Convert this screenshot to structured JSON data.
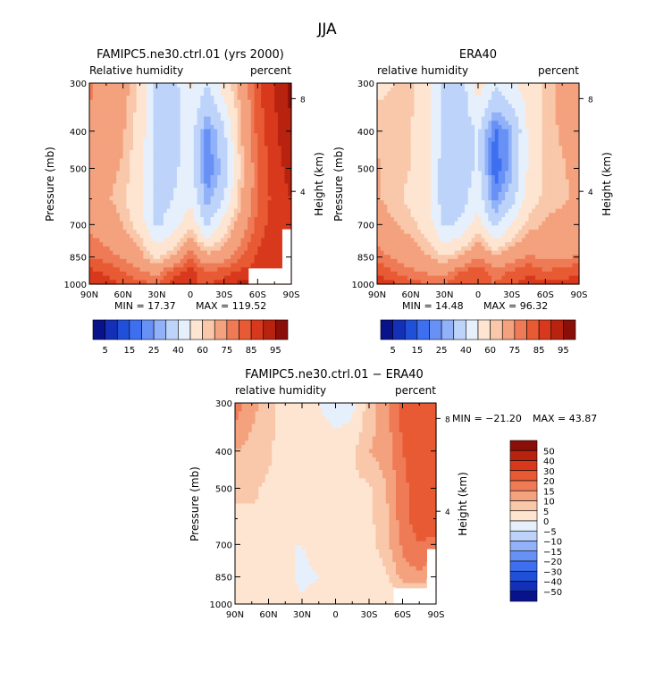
{
  "figure": {
    "title": "JJA"
  },
  "colorbars": {
    "main": {
      "colors": [
        "#08128a",
        "#1430b8",
        "#2050d8",
        "#3d6ff0",
        "#6891f5",
        "#91b2f8",
        "#bdd3fa",
        "#e6f0fd",
        "#fde5d2",
        "#f9c7a9",
        "#f4a17e",
        "#ef7a56",
        "#e85a33",
        "#d8391c",
        "#b8230f",
        "#8a0f08"
      ],
      "labels": [
        "5",
        "15",
        "25",
        "40",
        "60",
        "75",
        "85",
        "95"
      ]
    },
    "diff": {
      "colors": [
        "#08128a",
        "#1430b8",
        "#2050d8",
        "#3d6ff0",
        "#6891f5",
        "#91b2f8",
        "#bdd3fa",
        "#e6f0fd",
        "#fde5d2",
        "#f9c7a9",
        "#f4a17e",
        "#ef7a56",
        "#e85a33",
        "#d8391c",
        "#b8230f",
        "#8a0f08"
      ],
      "labels": [
        "50",
        "40",
        "30",
        "20",
        "15",
        "10",
        "5",
        "0",
        "−5",
        "−10",
        "−15",
        "−20",
        "−30",
        "−40",
        "−50"
      ]
    }
  },
  "chart_data": [
    {
      "type": "heatmap",
      "title": "FAMIPC5.ne30.ctrl.01 (yrs 2000)",
      "left_subtitle": "Relative humidity",
      "right_subtitle": "percent",
      "ylabel": "Pressure (mb)",
      "y2label": "Height (km)",
      "x_ticks": [
        "90N",
        "60N",
        "30N",
        "0",
        "30S",
        "60S",
        "90S"
      ],
      "y_ticks": [
        "300",
        "400",
        "500",
        "700",
        "850",
        "1000"
      ],
      "y2_ticks": [
        "8",
        "4"
      ],
      "min_text": "MIN =   17.37",
      "max_text": "MAX = 119.52",
      "lat": [
        90,
        75,
        60,
        45,
        30,
        15,
        0,
        -15,
        -30,
        -45,
        -60,
        -75,
        -90
      ],
      "lev": [
        300,
        400,
        500,
        600,
        700,
        850,
        925,
        1000
      ],
      "levels": [
        5,
        10,
        15,
        20,
        25,
        30,
        40,
        50,
        60,
        65,
        75,
        80,
        85,
        90,
        95
      ],
      "z": [
        [
          76,
          72,
          69,
          58,
          38,
          35,
          52,
          40,
          55,
          68,
          84,
          90,
          97
        ],
        [
          74,
          70,
          66,
          56,
          37,
          36,
          45,
          22,
          38,
          64,
          82,
          89,
          94
        ],
        [
          72,
          68,
          64,
          54,
          36,
          38,
          45,
          20,
          32,
          62,
          80,
          88,
          92
        ],
        [
          70,
          66,
          62,
          52,
          36,
          40,
          48,
          26,
          40,
          64,
          80,
          87,
          90
        ],
        [
          74,
          70,
          65,
          56,
          38,
          45,
          58,
          38,
          55,
          70,
          82,
          88,
          88
        ],
        [
          80,
          78,
          74,
          68,
          58,
          66,
          80,
          68,
          72,
          80,
          86,
          88,
          86
        ],
        [
          86,
          84,
          80,
          76,
          72,
          82,
          88,
          80,
          82,
          86,
          86,
          88,
          86
        ],
        [
          90,
          88,
          84,
          82,
          80,
          88,
          86,
          84,
          88,
          92,
          90,
          90,
          88
        ]
      ],
      "missing": {
        "lat_from": -52,
        "lat_to": -90,
        "lev_from": 910,
        "lev_to": 1000
      },
      "missing2": {
        "lat_from": -82,
        "lat_to": -90,
        "lev_from": 720,
        "lev_to": 1000
      }
    },
    {
      "type": "heatmap",
      "title": "ERA40",
      "left_subtitle": "relative humidity",
      "right_subtitle": "percent",
      "ylabel": "Pressure (mb)",
      "y2label": "Height (km)",
      "x_ticks": [
        "90N",
        "60N",
        "30N",
        "0",
        "30S",
        "60S",
        "90S"
      ],
      "y_ticks": [
        "300",
        "400",
        "500",
        "700",
        "850",
        "1000"
      ],
      "y2_ticks": [
        "8",
        "4"
      ],
      "min_text": "MIN =   14.48",
      "max_text": "MAX =   96.32",
      "lat": [
        90,
        75,
        60,
        45,
        30,
        15,
        0,
        -15,
        -30,
        -45,
        -60,
        -75,
        -90
      ],
      "lev": [
        300,
        400,
        500,
        600,
        700,
        850,
        925,
        1000
      ],
      "levels": [
        5,
        10,
        15,
        20,
        25,
        30,
        40,
        50,
        60,
        65,
        75,
        80,
        85,
        90,
        95
      ],
      "z": [
        [
          58,
          60,
          62,
          55,
          38,
          35,
          55,
          42,
          48,
          55,
          62,
          68,
          72
        ],
        [
          64,
          62,
          60,
          54,
          36,
          32,
          42,
          18,
          28,
          52,
          62,
          66,
          70
        ],
        [
          66,
          62,
          60,
          52,
          34,
          34,
          42,
          16,
          28,
          52,
          62,
          64,
          68
        ],
        [
          66,
          62,
          58,
          52,
          34,
          36,
          46,
          22,
          36,
          56,
          62,
          64,
          66
        ],
        [
          70,
          66,
          62,
          56,
          38,
          42,
          56,
          36,
          52,
          62,
          66,
          68,
          70
        ],
        [
          78,
          74,
          70,
          66,
          60,
          66,
          76,
          66,
          72,
          76,
          74,
          74,
          76
        ],
        [
          84,
          80,
          76,
          74,
          72,
          80,
          84,
          78,
          80,
          84,
          80,
          82,
          84
        ],
        [
          88,
          86,
          82,
          80,
          80,
          86,
          82,
          80,
          84,
          88,
          86,
          86,
          88
        ]
      ]
    },
    {
      "type": "heatmap",
      "title": "FAMIPC5.ne30.ctrl.01 − ERA40",
      "left_subtitle": "relative humidity",
      "right_subtitle": "percent",
      "ylabel": "Pressure (mb)",
      "y2label": "Height (km)",
      "x_ticks": [
        "90N",
        "60N",
        "30N",
        "0",
        "30S",
        "60S",
        "90S"
      ],
      "y_ticks": [
        "300",
        "400",
        "500",
        "700",
        "850",
        "1000"
      ],
      "y2_ticks": [
        "8",
        "4"
      ],
      "min_text": "MIN = −21.20",
      "max_text": "MAX =   43.87",
      "lat": [
        90,
        75,
        60,
        45,
        30,
        15,
        0,
        -15,
        -30,
        -45,
        -60,
        -75,
        -90
      ],
      "lev": [
        300,
        400,
        500,
        600,
        700,
        850,
        925,
        1000
      ],
      "levels": [
        -50,
        -40,
        -30,
        -20,
        -15,
        -10,
        -5,
        0,
        5,
        10,
        15,
        20,
        30,
        40,
        50
      ],
      "z": [
        [
          18,
          12,
          7,
          3,
          0,
          0,
          -3,
          -2,
          7,
          13,
          22,
          22,
          25
        ],
        [
          10,
          8,
          6,
          2,
          1,
          4,
          3,
          4,
          10,
          12,
          20,
          23,
          24
        ],
        [
          6,
          6,
          4,
          2,
          2,
          4,
          3,
          4,
          4,
          10,
          18,
          24,
          24
        ],
        [
          4,
          4,
          4,
          0,
          2,
          4,
          2,
          4,
          4,
          8,
          18,
          23,
          24
        ],
        [
          4,
          4,
          3,
          0,
          0,
          3,
          2,
          2,
          3,
          8,
          16,
          20,
          18
        ],
        [
          2,
          4,
          4,
          2,
          -2,
          0,
          4,
          2,
          0,
          4,
          12,
          14,
          10
        ],
        [
          2,
          4,
          4,
          2,
          0,
          2,
          4,
          2,
          2,
          2,
          6,
          6,
          2
        ],
        [
          2,
          2,
          2,
          2,
          0,
          2,
          4,
          4,
          4,
          4,
          4,
          4,
          0
        ]
      ],
      "missing": {
        "lat_from": -52,
        "lat_to": -90,
        "lev_from": 910,
        "lev_to": 1000
      },
      "missing2": {
        "lat_from": -82,
        "lat_to": -90,
        "lev_from": 720,
        "lev_to": 1000
      }
    }
  ]
}
